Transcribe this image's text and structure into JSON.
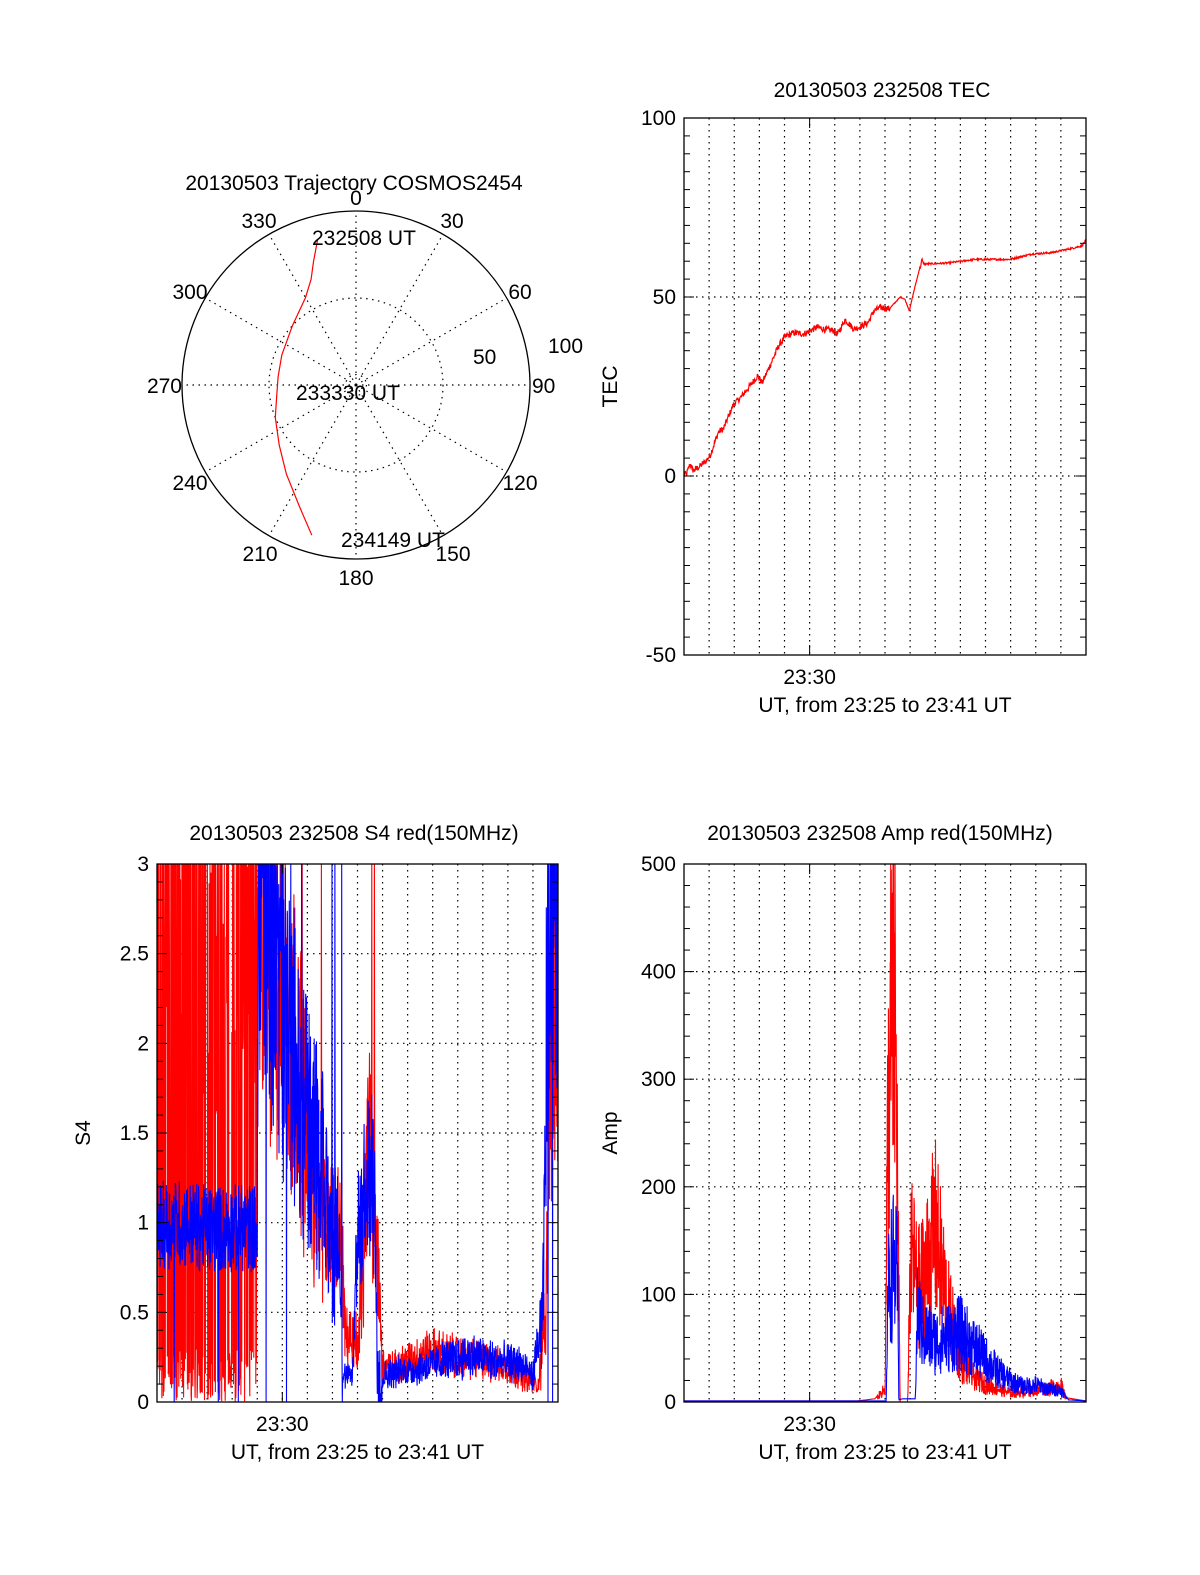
{
  "chart_data": [
    {
      "type": "polar",
      "title": "20130503 Trajectory COSMOS2454",
      "angle_ticks": [
        0,
        30,
        60,
        90,
        120,
        150,
        180,
        210,
        240,
        270,
        300,
        330
      ],
      "radial_ticks": [
        50,
        100
      ],
      "radial_range": [
        0,
        100
      ],
      "grid": true,
      "series": [
        {
          "name": "trajectory",
          "color": "#ff0000",
          "points_az_r": [
            [
              345.2,
              86.3
            ],
            [
              341,
              75
            ],
            [
              337,
              66
            ],
            [
              330,
              58
            ],
            [
              313,
              50
            ],
            [
              292,
              46
            ],
            [
              276,
              45
            ],
            [
              262,
              46
            ],
            [
              248,
              50
            ],
            [
              232,
              56
            ],
            [
              218,
              65
            ],
            [
              205,
              77
            ],
            [
              196.4,
              90
            ]
          ]
        }
      ],
      "annotations": [
        {
          "text": "232508 UT",
          "az": 345.2,
          "r": 86.3
        },
        {
          "text": "233330 UT",
          "az": 276,
          "r": 45
        },
        {
          "text": "234149 UT",
          "az": 196.4,
          "r": 90
        }
      ]
    },
    {
      "type": "line",
      "title": "20130503 232508 TEC",
      "xlabel": "UT, from 23:25 to 23:41 UT",
      "ylabel": "TEC",
      "x_unit": "minutes after 23:25",
      "xlim": [
        0,
        16
      ],
      "ylim": [
        -50,
        100
      ],
      "yticks": [
        -50,
        0,
        50,
        100
      ],
      "xtick_labels": [
        {
          "x": 5,
          "label": "23:30"
        }
      ],
      "grid": true,
      "series": [
        {
          "name": "TEC",
          "color": "#ff0000",
          "x": [
            0.1,
            0.24,
            0.37,
            0.6,
            0.84,
            1.04,
            1.37,
            1.57,
            1.97,
            2.24,
            2.64,
            2.93,
            3.11,
            3.37,
            3.77,
            4.04,
            4.37,
            4.77,
            5.31,
            5.57,
            5.97,
            6.11,
            6.41,
            6.77,
            7.04,
            7.31,
            7.57,
            7.84,
            8.17,
            8.61,
            8.79,
            8.97,
            9.17,
            9.37,
            9.47,
            9.57,
            10.51,
            11.57,
            12.97,
            13.84,
            14.64,
            15.44,
            15.84,
            16.0
          ],
          "y": [
            0.5,
            3.3,
            1.5,
            2.5,
            4,
            5.7,
            12.3,
            13.2,
            20,
            21.8,
            25.3,
            28,
            26,
            30,
            36.4,
            39,
            40,
            39.7,
            41.6,
            41,
            40.6,
            39.5,
            43.7,
            41,
            41.8,
            42.7,
            46.2,
            47.1,
            46.7,
            50,
            49.4,
            46.2,
            52.2,
            57.8,
            60.1,
            59.2,
            59.5,
            60.5,
            60.5,
            62,
            62.4,
            63.6,
            64.3,
            66
          ]
        }
      ]
    },
    {
      "type": "line",
      "title": "20130503 232508 S4 red(150MHz)",
      "xlabel": "UT, from 23:25 to 23:41 UT",
      "ylabel": "S4",
      "x_unit": "minutes after 23:25",
      "xlim": [
        0,
        16
      ],
      "ylim": [
        0,
        3
      ],
      "yticks": [
        0,
        0.5,
        1,
        1.5,
        2,
        2.5,
        3
      ],
      "ytick_labels": [
        "0",
        "0.5",
        "1",
        "1.5",
        "2",
        "2.5",
        "3"
      ],
      "xtick_labels": [
        {
          "x": 5,
          "label": "23:30"
        }
      ],
      "grid": true,
      "series": [
        {
          "name": "red (150MHz)",
          "color": "#ff0000",
          "x": [
            0,
            4.0,
            4.05,
            4.5,
            5.2,
            6.0,
            6.6,
            7.35,
            7.5,
            8.0,
            8.5,
            9.0,
            9.4,
            10.0,
            11.0,
            12.0,
            13.0,
            14.0,
            14.8,
            15.2,
            15.5,
            15.7,
            16.0
          ],
          "y": [
            3.0,
            3.0,
            2.9,
            2.6,
            2.2,
            1.5,
            1.0,
            0.9,
            0.35,
            0.3,
            1.6,
            0.2,
            0.18,
            0.22,
            0.27,
            0.24,
            0.22,
            0.18,
            0.12,
            0.08,
            0.5,
            2.0,
            2.2
          ],
          "note": "0–4 min: many spikes between 0 and 3"
        },
        {
          "name": "blue",
          "color": "#0000ff",
          "x": [
            0,
            1.0,
            2.0,
            3.0,
            4.0,
            4.05,
            4.5,
            5.2,
            6.0,
            6.6,
            7.0,
            7.3,
            7.4,
            7.8,
            8.0,
            8.7,
            8.8,
            9.5,
            10.5,
            11.5,
            12.5,
            13.5,
            14.5,
            15.0,
            15.4,
            15.6,
            16.0
          ],
          "y": [
            0.98,
            1.0,
            0.96,
            0.97,
            0.97,
            2.9,
            2.7,
            2.2,
            1.6,
            1.2,
            0.9,
            0.8,
            0.14,
            0.13,
            1.0,
            1.2,
            0.13,
            0.16,
            0.18,
            0.22,
            0.25,
            0.22,
            0.2,
            0.14,
            0.5,
            2.6,
            3.0
          ]
        }
      ]
    },
    {
      "type": "line",
      "title": "20130503 232508 Amp red(150MHz)",
      "xlabel": "UT, from 23:25 to 23:41 UT",
      "ylabel": "Amp",
      "x_unit": "minutes after 23:25",
      "xlim": [
        0,
        16
      ],
      "ylim": [
        0,
        500
      ],
      "yticks": [
        0,
        100,
        200,
        300,
        400,
        500
      ],
      "xtick_labels": [
        {
          "x": 5,
          "label": "23:30"
        }
      ],
      "grid": true,
      "series": [
        {
          "name": "red (150MHz)",
          "color": "#ff0000",
          "x": [
            0,
            6.9,
            7.6,
            8.0,
            8.1,
            8.2,
            8.4,
            8.5,
            8.6,
            8.9,
            9.0,
            9.1,
            9.3,
            9.6,
            10.0,
            10.5,
            11.0,
            11.5,
            12.0,
            12.5,
            13.0,
            13.5,
            14.0,
            14.5,
            15.0,
            15.2,
            16.0
          ],
          "y": [
            1,
            1,
            3,
            15,
            280,
            420,
            460,
            250,
            0,
            0,
            150,
            170,
            130,
            150,
            200,
            110,
            50,
            30,
            20,
            15,
            10,
            12,
            14,
            16,
            20,
            4,
            1
          ]
        },
        {
          "name": "blue",
          "color": "#0000ff",
          "x": [
            0,
            8.05,
            8.1,
            8.3,
            8.5,
            8.55,
            8.7,
            9.2,
            9.3,
            9.5,
            10.0,
            10.5,
            11.0,
            11.5,
            12.0,
            12.5,
            13.0,
            13.5,
            14.0,
            14.5,
            15.0,
            15.3,
            16.0
          ],
          "y": [
            1,
            1,
            120,
            160,
            140,
            2,
            3,
            3,
            110,
            80,
            70,
            75,
            80,
            65,
            50,
            35,
            25,
            18,
            20,
            15,
            14,
            2,
            1
          ]
        }
      ]
    }
  ]
}
